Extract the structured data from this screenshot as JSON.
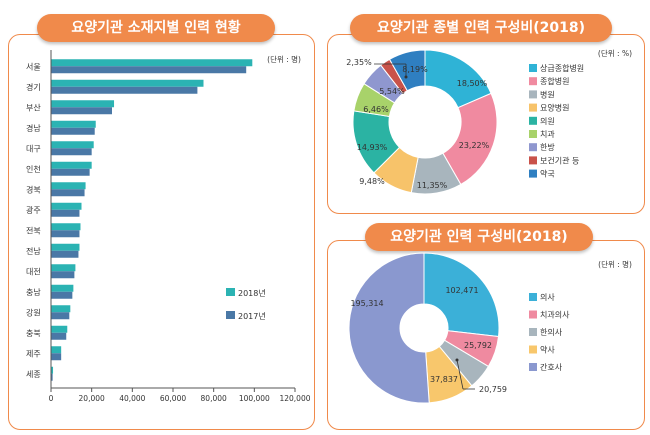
{
  "charts": [
    {
      "type": "bar",
      "title": "요양기관 소재지별 인력 현황",
      "unit": "(단위 : 명)",
      "orientation": "horizontal",
      "categories": [
        "서울",
        "경기",
        "부산",
        "경남",
        "대구",
        "인천",
        "경북",
        "광주",
        "전북",
        "전남",
        "대전",
        "충남",
        "강원",
        "충북",
        "제주",
        "세종"
      ],
      "series": [
        {
          "name": "2018년",
          "color": "#2bb3b3",
          "values": [
            99000,
            75000,
            31000,
            22000,
            21000,
            20000,
            17000,
            15000,
            14500,
            14000,
            12000,
            11000,
            9500,
            8000,
            5000,
            1000
          ]
        },
        {
          "name": "2017년",
          "color": "#4a78a6",
          "values": [
            96000,
            72000,
            30000,
            21500,
            20000,
            19000,
            16500,
            14000,
            14000,
            13500,
            11500,
            10500,
            9000,
            7500,
            5000,
            800
          ]
        }
      ],
      "x_ticks": [
        "0",
        "20,000",
        "40,000",
        "60,000",
        "80,000",
        "100,000",
        "120,000"
      ],
      "xlim": [
        0,
        120000
      ],
      "legend_position": "lower-right"
    },
    {
      "type": "pie",
      "title": "요양기관 종별 인력 구성비(2018)",
      "unit": "(단위 : %)",
      "labels": [
        "상급종합병원",
        "종합병원",
        "병원",
        "요양병원",
        "의원",
        "치과",
        "한방",
        "보건기관 등",
        "약국"
      ],
      "values": [
        18.5,
        23.22,
        11.35,
        9.48,
        14.93,
        6.46,
        5.54,
        2.35,
        8.19
      ],
      "value_labels": [
        "18,50%",
        "23,22%",
        "11,35%",
        "9,48%",
        "14,93%",
        "6,46%",
        "5,54%",
        "2,35%",
        "8,19%"
      ],
      "colors": [
        "#2fb3d6",
        "#f08aa0",
        "#a8b5bd",
        "#f7c36a",
        "#2bb3a3",
        "#a8d26a",
        "#8f97cf",
        "#c9524a",
        "#2f7fc1"
      ],
      "legend_position": "right"
    },
    {
      "type": "pie",
      "title": "요양기관 인력 구성비(2018)",
      "unit": "(단위 : 명)",
      "labels": [
        "의사",
        "치과의사",
        "한의사",
        "약사",
        "간호사"
      ],
      "values": [
        102471,
        25792,
        20759,
        37837,
        195314
      ],
      "value_labels": [
        "102,471",
        "25,792",
        "20,759",
        "37,837",
        "195,314"
      ],
      "colors": [
        "#3bb0d8",
        "#ef8aa0",
        "#a8b5bd",
        "#f8c76c",
        "#8a98cf"
      ],
      "legend_position": "right"
    }
  ]
}
